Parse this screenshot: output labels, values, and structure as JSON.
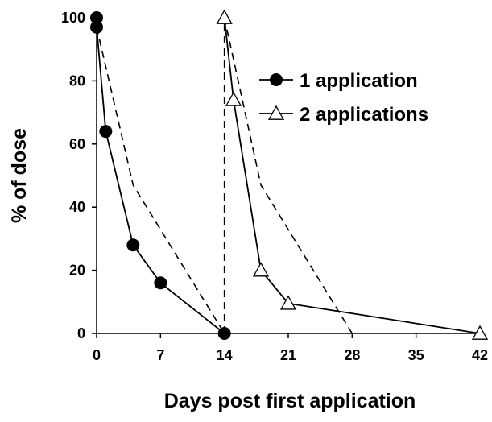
{
  "chart_data": {
    "type": "line",
    "title": "",
    "xlabel": "Days post first application",
    "ylabel": "% of dose",
    "xlim": [
      0,
      42
    ],
    "ylim": [
      0,
      100
    ],
    "x_ticks": [
      0,
      7,
      14,
      21,
      28,
      35,
      42
    ],
    "y_ticks": [
      0,
      20,
      40,
      60,
      80,
      100
    ],
    "grid": false,
    "legend_position": "top-right",
    "series": [
      {
        "name": "1 application",
        "marker": "filled-circle",
        "line_style": "solid",
        "color": "#000000",
        "x": [
          0,
          0,
          1,
          4,
          7,
          14
        ],
        "y": [
          100,
          97,
          64,
          28,
          16,
          0
        ]
      },
      {
        "name": "2 applications",
        "marker": "open-triangle",
        "line_style": "solid",
        "color": "#000000",
        "x": [
          14,
          15,
          18,
          21,
          42
        ],
        "y": [
          100,
          74,
          20,
          9.5,
          0
        ]
      }
    ],
    "reference_lines": [
      {
        "style": "dashed",
        "x": [
          0,
          4,
          14
        ],
        "y": [
          97,
          47,
          0
        ]
      },
      {
        "style": "dashed",
        "x": [
          14,
          14
        ],
        "y": [
          0,
          100
        ]
      },
      {
        "style": "dashed",
        "x": [
          14,
          18,
          28
        ],
        "y": [
          100,
          47,
          0
        ]
      }
    ]
  }
}
